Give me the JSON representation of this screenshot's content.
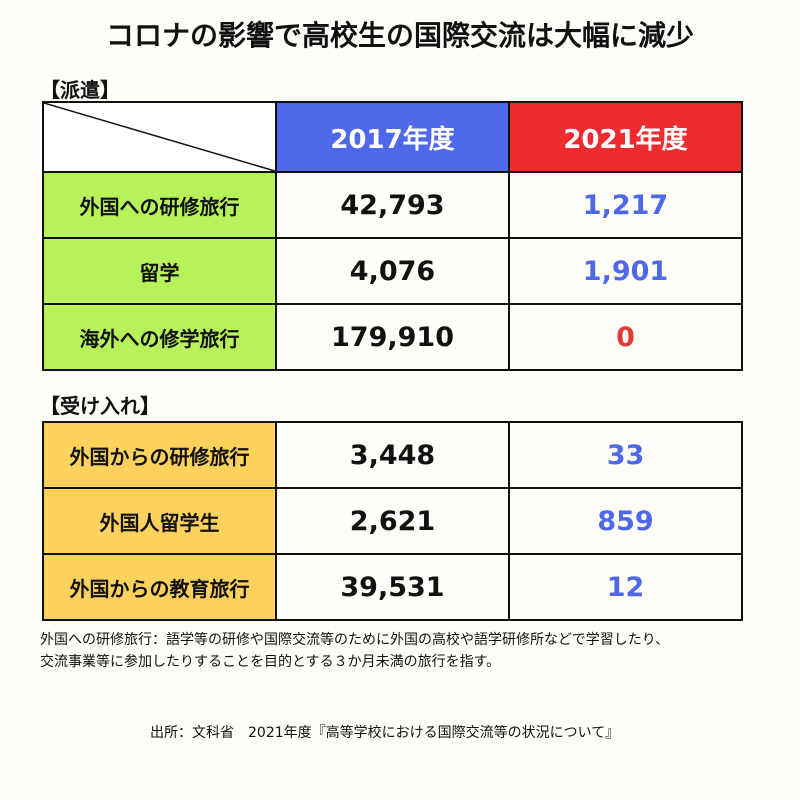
{
  "title": "コロナの影響で高校生の国際交流は大幅に減少",
  "colors": {
    "header_2017": "#4f68ea",
    "header_2021": "#ec2c2f",
    "dispatch_label_bg": "#b8f25a",
    "accept_label_bg": "#fdd25c",
    "value_2021": "#4f68ea",
    "value_zero": "#e23a35"
  },
  "chart_data": {
    "type": "table",
    "columns": [
      "2017年度",
      "2021年度"
    ],
    "sections": [
      {
        "label": "【派遣】",
        "rows": [
          {
            "label": "外国への研修旅行",
            "v2017": "42,793",
            "v2021": "1,217"
          },
          {
            "label": "留学",
            "v2017": "4,076",
            "v2021": "1,901"
          },
          {
            "label": "海外への修学旅行",
            "v2017": "179,910",
            "v2021": "0"
          }
        ]
      },
      {
        "label": "【受け入れ】",
        "rows": [
          {
            "label": "外国からの研修旅行",
            "v2017": "3,448",
            "v2021": "33"
          },
          {
            "label": "外国人留学生",
            "v2017": "2,621",
            "v2021": "859"
          },
          {
            "label": "外国からの教育旅行",
            "v2017": "39,531",
            "v2021": "12"
          }
        ]
      }
    ]
  },
  "note": {
    "line1": "外国への研修旅行：語学等の研修や国際交流等のために外国の高校や語学研修所などで学習したり、",
    "line2": "交流事業等に参加したりすることを目的とする３か月未満の旅行を指す。"
  },
  "source": "出所：文科省　2021年度『高等学校における国際交流等の状況について』"
}
